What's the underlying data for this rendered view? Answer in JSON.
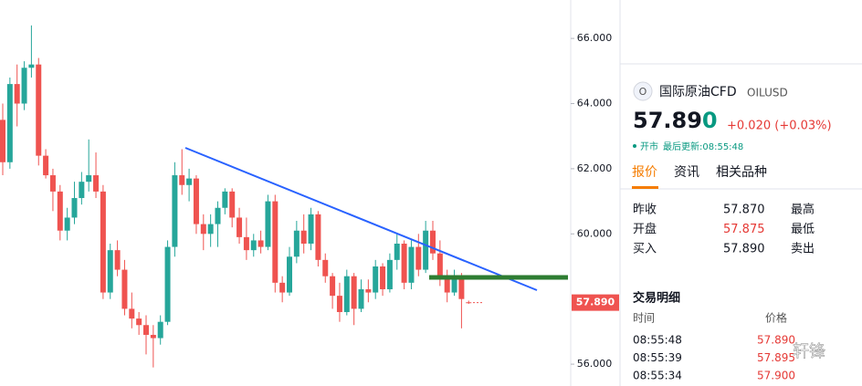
{
  "chart_data": {
    "type": "candlestick",
    "open": [
      63.5,
      62.2,
      64.6,
      64.0,
      65.1,
      65.2,
      62.4,
      61.8,
      61.3,
      60.1,
      60.5,
      61.1,
      61.6,
      61.8,
      61.3,
      58.2,
      59.5,
      58.9,
      57.7,
      57.4,
      57.2,
      56.9,
      56.8,
      57.3,
      59.6,
      61.8,
      61.5,
      61.7,
      60.3,
      60.0,
      60.3,
      60.8,
      61.3,
      60.5,
      59.9,
      59.5,
      59.8,
      59.6,
      61.0,
      58.5,
      58.2,
      59.3,
      60.1,
      59.7,
      60.6,
      59.2,
      58.7,
      58.1,
      57.6,
      58.7,
      57.7,
      58.3,
      58.2,
      59.0,
      58.3,
      59.2,
      59.7,
      58.5,
      59.6,
      58.9,
      60.1,
      59.4,
      58.6,
      58.2,
      58.7,
      57.9
    ],
    "high": [
      64.0,
      64.8,
      65.2,
      65.3,
      66.4,
      65.4,
      62.6,
      62.0,
      61.5,
      60.8,
      61.6,
      61.9,
      62.9,
      62.5,
      61.5,
      59.7,
      59.8,
      59.2,
      58.2,
      57.6,
      57.5,
      57.2,
      57.5,
      59.8,
      62.2,
      62.6,
      62.0,
      61.8,
      60.6,
      60.6,
      61.0,
      61.4,
      61.4,
      60.8,
      60.5,
      60.0,
      60.1,
      61.2,
      61.2,
      58.7,
      59.6,
      60.4,
      60.6,
      60.8,
      60.7,
      59.4,
      58.8,
      58.5,
      58.9,
      58.8,
      58.6,
      58.6,
      59.2,
      59.1,
      59.4,
      60.0,
      59.8,
      59.8,
      60.0,
      60.4,
      60.4,
      59.8,
      58.9,
      58.9,
      58.8,
      57.95
    ],
    "low": [
      61.8,
      62.0,
      63.3,
      63.8,
      64.8,
      62.1,
      61.7,
      60.7,
      59.8,
      59.8,
      60.3,
      60.9,
      61.3,
      61.1,
      58.0,
      58.0,
      58.7,
      57.5,
      57.1,
      56.9,
      56.3,
      55.9,
      56.6,
      57.2,
      59.3,
      61.2,
      61.0,
      60.0,
      59.5,
      59.6,
      59.6,
      60.6,
      60.2,
      59.7,
      59.2,
      59.3,
      59.4,
      59.5,
      58.2,
      57.9,
      58.1,
      59.1,
      59.4,
      59.5,
      59.0,
      58.5,
      57.7,
      57.3,
      57.5,
      57.2,
      57.6,
      57.9,
      58.0,
      58.1,
      58.2,
      58.9,
      58.3,
      58.3,
      58.7,
      58.8,
      59.2,
      58.4,
      57.9,
      58.1,
      57.1,
      57.85
    ],
    "close": [
      62.2,
      64.6,
      64.0,
      65.1,
      65.2,
      62.4,
      61.8,
      61.3,
      60.1,
      60.5,
      61.1,
      61.6,
      61.8,
      61.3,
      58.2,
      59.5,
      58.9,
      57.7,
      57.4,
      57.2,
      56.9,
      56.8,
      57.3,
      59.6,
      61.8,
      61.5,
      61.7,
      60.3,
      60.0,
      60.3,
      60.8,
      61.3,
      60.5,
      59.9,
      59.5,
      59.8,
      59.6,
      61.0,
      58.5,
      58.2,
      59.3,
      60.1,
      59.7,
      60.6,
      59.2,
      58.7,
      58.1,
      57.6,
      58.7,
      57.7,
      58.3,
      58.2,
      59.0,
      58.3,
      59.2,
      59.7,
      58.5,
      59.6,
      58.9,
      60.1,
      59.4,
      58.6,
      58.2,
      58.7,
      58.0,
      57.89
    ],
    "up_color": "#26a69a",
    "down_color": "#ef5350",
    "ylim": [
      55.33,
      67.18
    ],
    "yticks": [
      {
        "value": 56,
        "label": "56.000"
      },
      {
        "value": 60,
        "label": "60.000"
      },
      {
        "value": 62,
        "label": "62.000"
      },
      {
        "value": 64,
        "label": "64.000"
      },
      {
        "value": 66,
        "label": "66.000"
      }
    ],
    "last_price": {
      "value": 57.89,
      "label": "57.890"
    }
  },
  "panel": {
    "icon": "O",
    "name": "国际原油CFD",
    "symbol": "OILUSD",
    "price_main": "57.89",
    "price_tick": "0",
    "change": "+0.020 (+0.03%)",
    "status": "开市",
    "updated": "最后更新:08:55:48",
    "tabs": [
      "报价",
      "资讯",
      "相关品种"
    ],
    "quote_rows": [
      [
        "昨收",
        "57.870",
        "最高"
      ],
      [
        "开盘",
        "57.875",
        "最低"
      ],
      [
        "买入",
        "57.890",
        "卖出"
      ]
    ],
    "trades_title": "交易明细",
    "trades_header": [
      "时间",
      "价格"
    ],
    "trades": [
      [
        "08:55:48",
        "57.890"
      ],
      [
        "08:55:39",
        "57.895"
      ],
      [
        "08:55:34",
        "57.900"
      ]
    ],
    "watermark": "轩锋"
  }
}
